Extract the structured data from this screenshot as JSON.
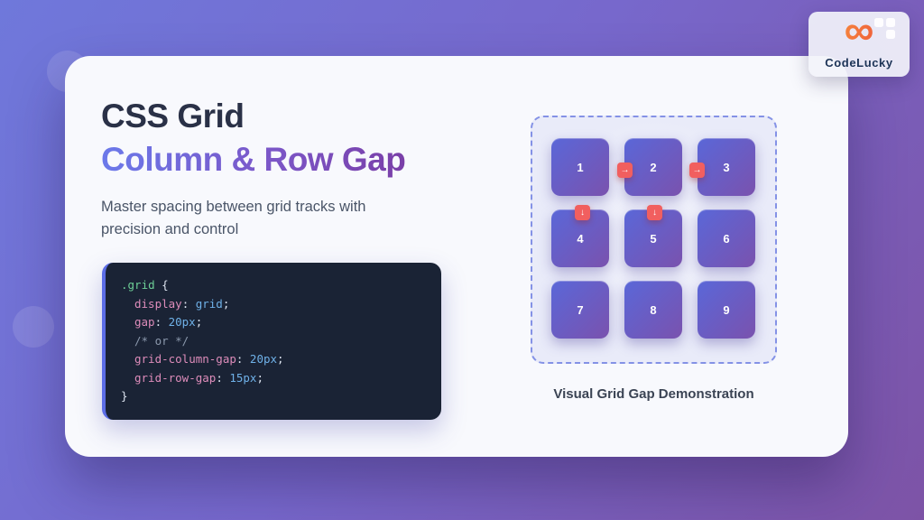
{
  "brand": {
    "name": "CodeLucky",
    "infinity_glyph": "∞"
  },
  "header": {
    "title_line1": "CSS Grid",
    "title_line2": "Column & Row Gap",
    "subtitle": "Master spacing between grid tracks with precision and control"
  },
  "code": {
    "selector": ".grid",
    "open_brace": "{",
    "close_brace": "}",
    "colon": ":",
    "semicolon": ";",
    "declarations": [
      {
        "prop": "display",
        "value": "grid"
      },
      {
        "prop": "gap",
        "value": "20px"
      },
      {
        "comment": "/* or */"
      },
      {
        "prop": "grid-column-gap",
        "value": "20px"
      },
      {
        "prop": "grid-row-gap",
        "value": "15px"
      }
    ]
  },
  "demo": {
    "cells": [
      "1",
      "2",
      "3",
      "4",
      "5",
      "6",
      "7",
      "8",
      "9"
    ],
    "column_gap_arrow": "→",
    "row_gap_arrow": "↓",
    "caption": "Visual Grid Gap Demonstration"
  },
  "colors": {
    "background_gradient_start": "#6f78db",
    "background_gradient_end": "#7d53a6",
    "card_background": "#f8f9fd",
    "title_gradient_start": "#6b79ea",
    "title_gradient_end": "#7a3fa8",
    "code_background": "#1a2335",
    "code_accent_border": "#5c6de6",
    "cell_gradient_start": "#5a67d8",
    "cell_gradient_end": "#7a52ae",
    "gap_badge_red": "#f15f5f",
    "demo_dash_border": "#8492e6"
  }
}
